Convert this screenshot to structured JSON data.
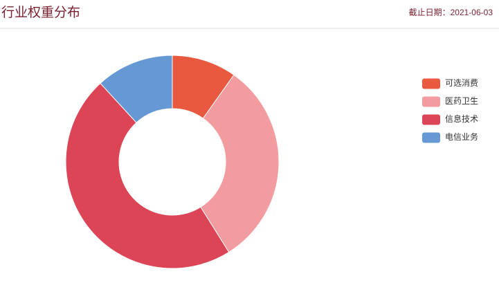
{
  "chart_data": {
    "type": "donut",
    "title": "行业权重分布",
    "date_label": "截止日期：2021-06-03",
    "categories": [
      "可选消费",
      "医药卫生",
      "信息技术",
      "电信业务"
    ],
    "values": [
      9.8,
      31.3,
      47.1,
      11.8
    ],
    "colors": [
      "#e8593f",
      "#f29c9f",
      "#dc4556",
      "#6699d4"
    ],
    "legend": "right"
  }
}
